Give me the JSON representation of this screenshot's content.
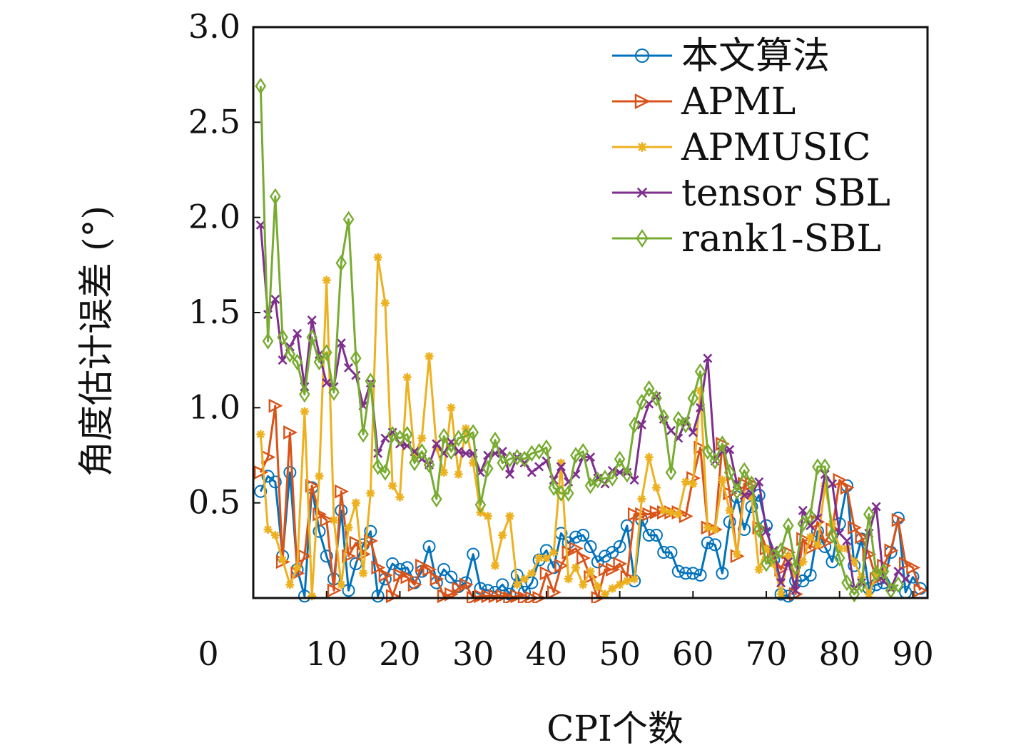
{
  "chart_data": {
    "type": "line",
    "xlabel": "CPI个数",
    "ylabel": "角度估计误差 (°)",
    "xlim": [
      0,
      92
    ],
    "ylim": [
      0,
      3.0
    ],
    "xticks": [
      10,
      20,
      30,
      40,
      50,
      60,
      70,
      80,
      90
    ],
    "x_zero_label": "0",
    "yticks": [
      "0.5",
      "1.0",
      "1.5",
      "2.0",
      "2.5",
      "3.0"
    ],
    "legend_position": "top-right",
    "series": [
      {
        "name": "本文算法",
        "color": "#0072BD",
        "marker": "circle",
        "values": [
          0.56,
          0.64,
          0.61,
          0.22,
          0.66,
          0.15,
          0.01,
          0.58,
          0.35,
          0.22,
          0.1,
          0.46,
          0.04,
          0.18,
          0.28,
          0.35,
          0.01,
          0.1,
          0.18,
          0.15,
          0.16,
          0.08,
          0.14,
          0.27,
          0.08,
          0.15,
          0.11,
          0.06,
          0.08,
          0.23,
          0.05,
          0.04,
          0.03,
          0.07,
          0.02,
          0.12,
          0.03,
          0.08,
          0.2,
          0.25,
          0.16,
          0.34,
          0.29,
          0.32,
          0.33,
          0.27,
          0.19,
          0.22,
          0.24,
          0.27,
          0.38,
          0.09,
          0.41,
          0.33,
          0.33,
          0.24,
          0.24,
          0.14,
          0.13,
          0.13,
          0.12,
          0.29,
          0.28,
          0.13,
          0.4,
          0.53,
          0.36,
          0.48,
          0.54,
          0.38,
          0.2,
          0.02,
          0.01,
          0.09,
          0.09,
          0.12,
          0.35,
          0.27,
          0.19,
          0.39,
          0.59,
          0.17,
          0.31,
          0.05,
          0.07,
          0.08,
          0.24,
          0.42,
          0.03,
          0.11,
          0.05
        ]
      },
      {
        "name": "APML",
        "color": "#D95319",
        "marker": "triangle-right",
        "values": [
          0.66,
          0.74,
          1.01,
          0.19,
          0.87,
          0.13,
          0.22,
          0.59,
          0.44,
          0.41,
          0.04,
          0.56,
          0.22,
          0.29,
          0.23,
          0.3,
          0.16,
          0.12,
          0.01,
          0.12,
          0.11,
          0.07,
          0.17,
          0.15,
          0.1,
          0.01,
          0.02,
          0.05,
          0.07,
          0.0,
          0.01,
          0.01,
          0.01,
          0.01,
          0.0,
          0.01,
          0.0,
          0.0,
          0.0,
          0.13,
          0.03,
          0.17,
          0.24,
          0.26,
          0.21,
          0.11,
          0.0,
          0.15,
          0.15,
          0.18,
          0.11,
          0.44,
          0.44,
          0.44,
          0.45,
          0.45,
          0.45,
          0.45,
          0.43,
          0.63,
          0.79,
          0.37,
          0.36,
          0.81,
          0.55,
          0.22,
          0.6,
          0.6,
          0.37,
          0.26,
          0.22,
          0.15,
          0.24,
          0.02,
          0.31,
          0.26,
          0.4,
          0.29,
          0.36,
          0.62,
          0.58,
          0.37,
          0.32,
          0.23,
          0.1,
          0.17,
          0.25,
          0.41,
          0.18,
          0.16,
          0.04
        ]
      },
      {
        "name": "APMUSIC",
        "color": "#EDB120",
        "marker": "asterisk",
        "values": [
          0.86,
          0.36,
          0.33,
          0.2,
          0.07,
          0.16,
          0.98,
          0.01,
          0.64,
          1.67,
          0.41,
          0.07,
          0.37,
          0.5,
          0.13,
          0.55,
          1.79,
          1.55,
          0.59,
          0.53,
          1.16,
          0.75,
          0.84,
          1.27,
          0.79,
          0.66,
          1.0,
          0.65,
          0.89,
          0.71,
          0.45,
          0.43,
          0.17,
          0.33,
          0.43,
          0.07,
          0.1,
          0.13,
          0.21,
          0.21,
          0.24,
          0.71,
          0.1,
          0.16,
          0.07,
          0.14,
          0.06,
          0.02,
          0.05,
          0.07,
          0.09,
          0.1,
          0.52,
          0.74,
          0.58,
          0.46,
          0.45,
          0.44,
          0.61,
          0.6,
          1.09,
          0.37,
          0.36,
          0.62,
          0.46,
          0.23,
          0.54,
          0.53,
          0.15,
          0.26,
          0.18,
          0.02,
          0.22,
          0.12,
          0.19,
          0.32,
          0.28,
          0.59,
          0.39,
          0.26,
          0.26,
          0.19,
          0.11,
          0.02,
          0.12,
          0.15
        ]
      },
      {
        "name": "tensor SBL",
        "color": "#7E2F8E",
        "marker": "x",
        "values": [
          1.96,
          1.49,
          1.57,
          1.25,
          1.32,
          1.39,
          1.11,
          1.46,
          1.28,
          1.13,
          1.11,
          1.34,
          1.21,
          1.17,
          1.01,
          1.13,
          0.76,
          0.84,
          0.87,
          0.81,
          0.8,
          0.77,
          0.73,
          0.7,
          0.81,
          0.76,
          0.82,
          0.77,
          0.76,
          0.76,
          0.66,
          0.75,
          0.76,
          0.77,
          0.65,
          0.74,
          0.71,
          0.66,
          0.69,
          0.72,
          0.62,
          0.69,
          0.61,
          0.65,
          0.74,
          0.74,
          0.63,
          0.6,
          0.67,
          0.66,
          0.66,
          0.62,
          0.91,
          1.02,
          1.06,
          0.94,
          0.88,
          0.84,
          0.93,
          0.87,
          1.0,
          1.26,
          0.72,
          0.77,
          0.78,
          0.6,
          0.54,
          0.55,
          0.61,
          0.35,
          0.25,
          0.08,
          0.19,
          0.04,
          0.46,
          0.38,
          0.42,
          0.65,
          0.6,
          0.34,
          0.3,
          0.05,
          0.08,
          0.34,
          0.48,
          0.09,
          0.05,
          0.14,
          0.1
        ]
      },
      {
        "name": "rank1-SBL",
        "color": "#77AC30",
        "marker": "diamond",
        "values": [
          2.69,
          1.35,
          2.11,
          1.37,
          1.28,
          1.24,
          1.07,
          1.37,
          1.24,
          1.29,
          1.08,
          1.76,
          1.99,
          1.26,
          0.86,
          1.14,
          0.69,
          0.66,
          0.86,
          0.84,
          0.86,
          0.71,
          0.77,
          0.7,
          0.52,
          0.85,
          0.77,
          0.84,
          0.85,
          0.87,
          0.49,
          0.68,
          0.83,
          0.71,
          0.73,
          0.74,
          0.73,
          0.76,
          0.77,
          0.79,
          0.58,
          0.55,
          0.55,
          0.75,
          0.77,
          0.59,
          0.62,
          0.63,
          0.63,
          0.73,
          0.65,
          0.91,
          1.03,
          1.1,
          1.05,
          0.95,
          0.66,
          0.94,
          0.91,
          1.05,
          1.19,
          0.77,
          0.72,
          0.81,
          0.66,
          0.56,
          0.67,
          0.6,
          0.36,
          0.18,
          0.22,
          0.25,
          0.38,
          0.16,
          0.39,
          0.43,
          0.69,
          0.69,
          0.33,
          0.21,
          0.08,
          0.02,
          0.07,
          0.44,
          0.13,
          0.14,
          0.04,
          0.07
        ]
      }
    ]
  }
}
